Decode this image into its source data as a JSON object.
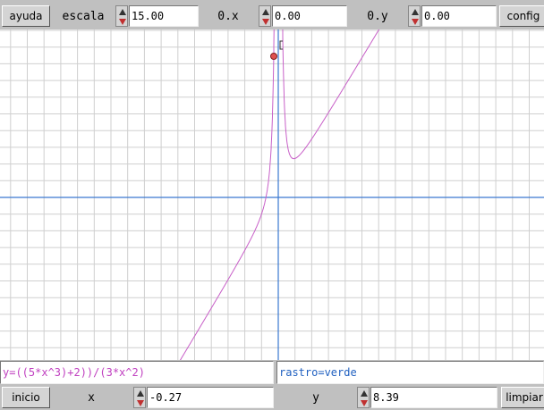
{
  "toolbar": {
    "help_button": "ayuda",
    "scale_label": "escala",
    "scale_value": "15.00",
    "origin_x_label": "0.x",
    "origin_x_value": "0.00",
    "origin_y_label": "0.y",
    "origin_y_value": "0.00",
    "config_button": "config"
  },
  "function": "y=((5*x^3)+2))/(3*x^2)",
  "trace": "rastro=verde",
  "bottom": {
    "start_button": "inicio",
    "x_label": "x",
    "x_value": "-0.27",
    "y_label": "y",
    "y_value": "8.39",
    "clear_button": "limpiar"
  }
}
